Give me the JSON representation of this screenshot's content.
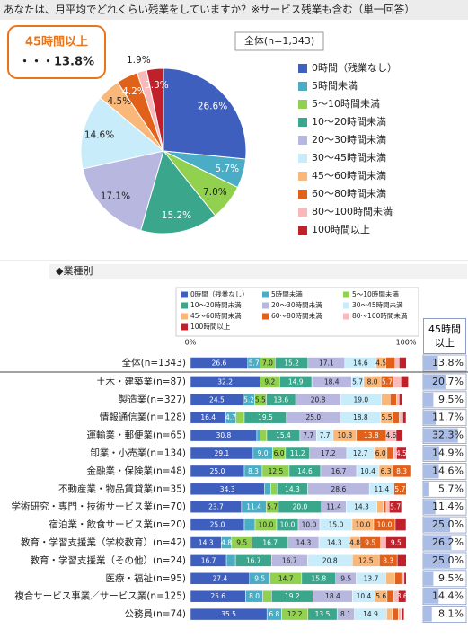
{
  "chart_data": [
    {
      "type": "pie",
      "title": "あなたは、月平均でどれくらい残業をしていますか？※サービス残業も含む（単一回答）",
      "annotation_title": "45時間以上",
      "annotation_text": "・・・13.8%",
      "subtitle": "全体(n=1,343)",
      "categories": [
        "0時間（残業なし）",
        "5時間未満",
        "5～10時間未満",
        "10～20時間未満",
        "20～30時間未満",
        "30～45時間未満",
        "45～60時間未満",
        "60～80時間未満",
        "80～100時間未満",
        "100時間以上"
      ],
      "values": [
        26.6,
        5.7,
        7.0,
        15.2,
        17.1,
        14.6,
        4.5,
        4.2,
        1.9,
        3.3
      ],
      "value_labels": [
        "26.6%",
        "5.7%",
        "7.0%",
        "15.2%",
        "17.1%",
        "14.6%",
        "4.5%",
        "4.2%",
        "1.9%",
        "3.3%"
      ],
      "colors": [
        "#3f5fbf",
        "#4bacc6",
        "#92d050",
        "#3aa68c",
        "#b7b7e0",
        "#c8ecfa",
        "#f9b77a",
        "#e2611a",
        "#f7b9b9",
        "#c0202a"
      ],
      "legend": "right"
    },
    {
      "type": "stackedbar",
      "title": "◆業種別",
      "categories": [
        "全体(n=1343)",
        "土木・建築業(n=87)",
        "製造業(n=327)",
        "情報通信業(n=128)",
        "運輸業・郵便業(n=65)",
        "卸業・小売業(n=134)",
        "金融業・保険業(n=48)",
        "不動産業・物品賃貸業(n=35)",
        "学術研究・専門・技術サービス業(n=70)",
        "宿泊業・飲食サービス業(n=20)",
        "教育・学習支援業（学校教育）(n=42)",
        "教育・学習支援業（その他）(n=24)",
        "医療・福祉(n=95)",
        "複合サービス事業／サービス業(n=125)",
        "公務員(n=74)"
      ],
      "series": [
        {
          "name": "0時間（残業なし）",
          "color": "#3f5fbf",
          "values": [
            26.6,
            32.2,
            24.5,
            16.4,
            30.8,
            29.1,
            25.0,
            34.3,
            23.7,
            25.0,
            14.3,
            16.7,
            27.4,
            25.6,
            35.5
          ],
          "value_labels": [
            "26.6",
            "32.2",
            "24.5",
            "16.4",
            "30.8",
            "29.1",
            "25.0",
            "34.3",
            "23.7",
            "25.0",
            "14.3",
            "16.7",
            "27.4",
            "25.6",
            "35.5"
          ]
        },
        {
          "name": "5時間未満",
          "color": "#4bacc6",
          "values": [
            5.7,
            0,
            5.2,
            4.7,
            1.5,
            9.0,
            8.3,
            2.9,
            11.4,
            5.0,
            4.8,
            4.2,
            9.5,
            8.0,
            6.8
          ],
          "value_labels": [
            "5.7",
            null,
            "5.2",
            "4.7",
            null,
            "9.0",
            "8.3",
            null,
            "11.4",
            null,
            "4.8",
            null,
            "9.5",
            "8.0",
            "6.8"
          ]
        },
        {
          "name": "5～10時間未満",
          "color": "#92d050",
          "values": [
            7.0,
            9.2,
            5.5,
            3.9,
            3.1,
            6.0,
            12.5,
            2.9,
            5.7,
            10.0,
            9.5,
            0,
            14.7,
            4.0,
            12.2
          ],
          "value_labels": [
            "7.0",
            "9.2",
            "5.5",
            null,
            null,
            "6.0",
            "12.5",
            null,
            "5.7",
            "10.0",
            "9.5",
            null,
            "14.7",
            null,
            "12.2"
          ]
        },
        {
          "name": "10～20時間未満",
          "color": "#3aa68c",
          "values": [
            15.2,
            14.9,
            13.6,
            19.5,
            15.4,
            11.2,
            14.6,
            14.3,
            20.0,
            10.0,
            16.7,
            16.7,
            15.8,
            19.2,
            13.5
          ],
          "value_labels": [
            "15.2",
            "14.9",
            "13.6",
            "19.5",
            "15.4",
            "11.2",
            "14.6",
            "14.3",
            "20.0",
            "10.0",
            "16.7",
            "16.7",
            "15.8",
            "19.2",
            "13.5"
          ]
        },
        {
          "name": "20～30時間未満",
          "color": "#b7b7e0",
          "values": [
            17.1,
            18.4,
            20.8,
            25.0,
            7.7,
            17.2,
            16.7,
            28.6,
            11.4,
            10.0,
            14.3,
            16.7,
            9.5,
            18.4,
            8.1
          ],
          "value_labels": [
            "17.1",
            "18.4",
            "20.8",
            "25.0",
            "7.7",
            "17.2",
            "16.7",
            "28.6",
            "11.4",
            "10.0",
            "14.3",
            "16.7",
            "9.5",
            "18.4",
            "8.1"
          ]
        },
        {
          "name": "30～45時間未満",
          "color": "#c8ecfa",
          "values": [
            14.6,
            5.7,
            19.0,
            18.8,
            7.7,
            12.7,
            10.4,
            11.4,
            14.3,
            15.0,
            14.3,
            20.8,
            13.7,
            10.4,
            14.9
          ],
          "value_labels": [
            "14.6",
            "5.7",
            "19.0",
            "18.8",
            "7.7",
            "12.7",
            "10.4",
            "11.4",
            "14.3",
            "15.0",
            "14.3",
            "20.8",
            "13.7",
            "10.4",
            "14.9"
          ]
        },
        {
          "name": "45～60時間未満",
          "color": "#f9b77a",
          "values": [
            4.5,
            8.0,
            4.0,
            5.5,
            10.8,
            6.0,
            6.3,
            0,
            2.9,
            10.0,
            4.8,
            12.5,
            4.2,
            5.6,
            2.7
          ],
          "value_labels": [
            "4.5",
            "8.0",
            null,
            "5.5",
            "10.8",
            "6.0",
            "6.3",
            null,
            null,
            "10.0",
            "4.8",
            "12.5",
            null,
            "5.6",
            null
          ]
        },
        {
          "name": "60～80時間未満",
          "color": "#e2611a",
          "values": [
            4.2,
            5.7,
            3.0,
            3.1,
            13.8,
            3.0,
            8.3,
            5.7,
            1.4,
            10.0,
            9.5,
            8.3,
            3.2,
            3.2,
            2.7
          ],
          "value_labels": [
            null,
            "5.7",
            null,
            null,
            "13.8",
            null,
            "8.3",
            "5.7",
            null,
            "10.0",
            "9.5",
            "8.3",
            null,
            null,
            null
          ]
        },
        {
          "name": "80～100時間未満",
          "color": "#f7b9b9",
          "values": [
            1.9,
            3.5,
            1.2,
            1.6,
            4.6,
            1.4,
            0,
            0,
            1.4,
            0,
            2.4,
            0,
            1.1,
            2.0,
            1.4
          ],
          "value_labels": [
            null,
            null,
            null,
            null,
            "4.6",
            null,
            null,
            null,
            null,
            null,
            null,
            null,
            null,
            null,
            null
          ]
        },
        {
          "name": "100時間以上",
          "color": "#c0202a",
          "values": [
            3.3,
            3.5,
            1.3,
            1.5,
            3.1,
            4.5,
            0,
            0,
            5.7,
            5.0,
            9.5,
            4.2,
            1.0,
            3.6,
            1.3
          ],
          "value_labels": [
            null,
            null,
            null,
            null,
            null,
            "4.5",
            null,
            null,
            "5.7",
            null,
            "9.5",
            null,
            null,
            "3.6",
            null
          ]
        }
      ],
      "xlim": [
        0,
        100
      ],
      "xticks": [
        {
          "value": 0,
          "label": "0%"
        },
        {
          "value": 100,
          "label": "100%"
        }
      ],
      "legend": "top"
    },
    {
      "type": "bar",
      "title": "45時間以上",
      "values": [
        13.8,
        20.7,
        9.5,
        11.7,
        32.3,
        14.9,
        14.6,
        5.7,
        11.4,
        25.0,
        26.2,
        25.0,
        9.5,
        14.4,
        8.1
      ],
      "value_labels": [
        "13.8%",
        "20.7%",
        "9.5%",
        "11.7%",
        "32.3%",
        "14.9%",
        "14.6%",
        "5.7%",
        "11.4%",
        "25.0%",
        "26.2%",
        "25.0%",
        "9.5%",
        "14.4%",
        "8.1%"
      ],
      "xlim": [
        0,
        40
      ],
      "color": "#a9bde6"
    }
  ]
}
